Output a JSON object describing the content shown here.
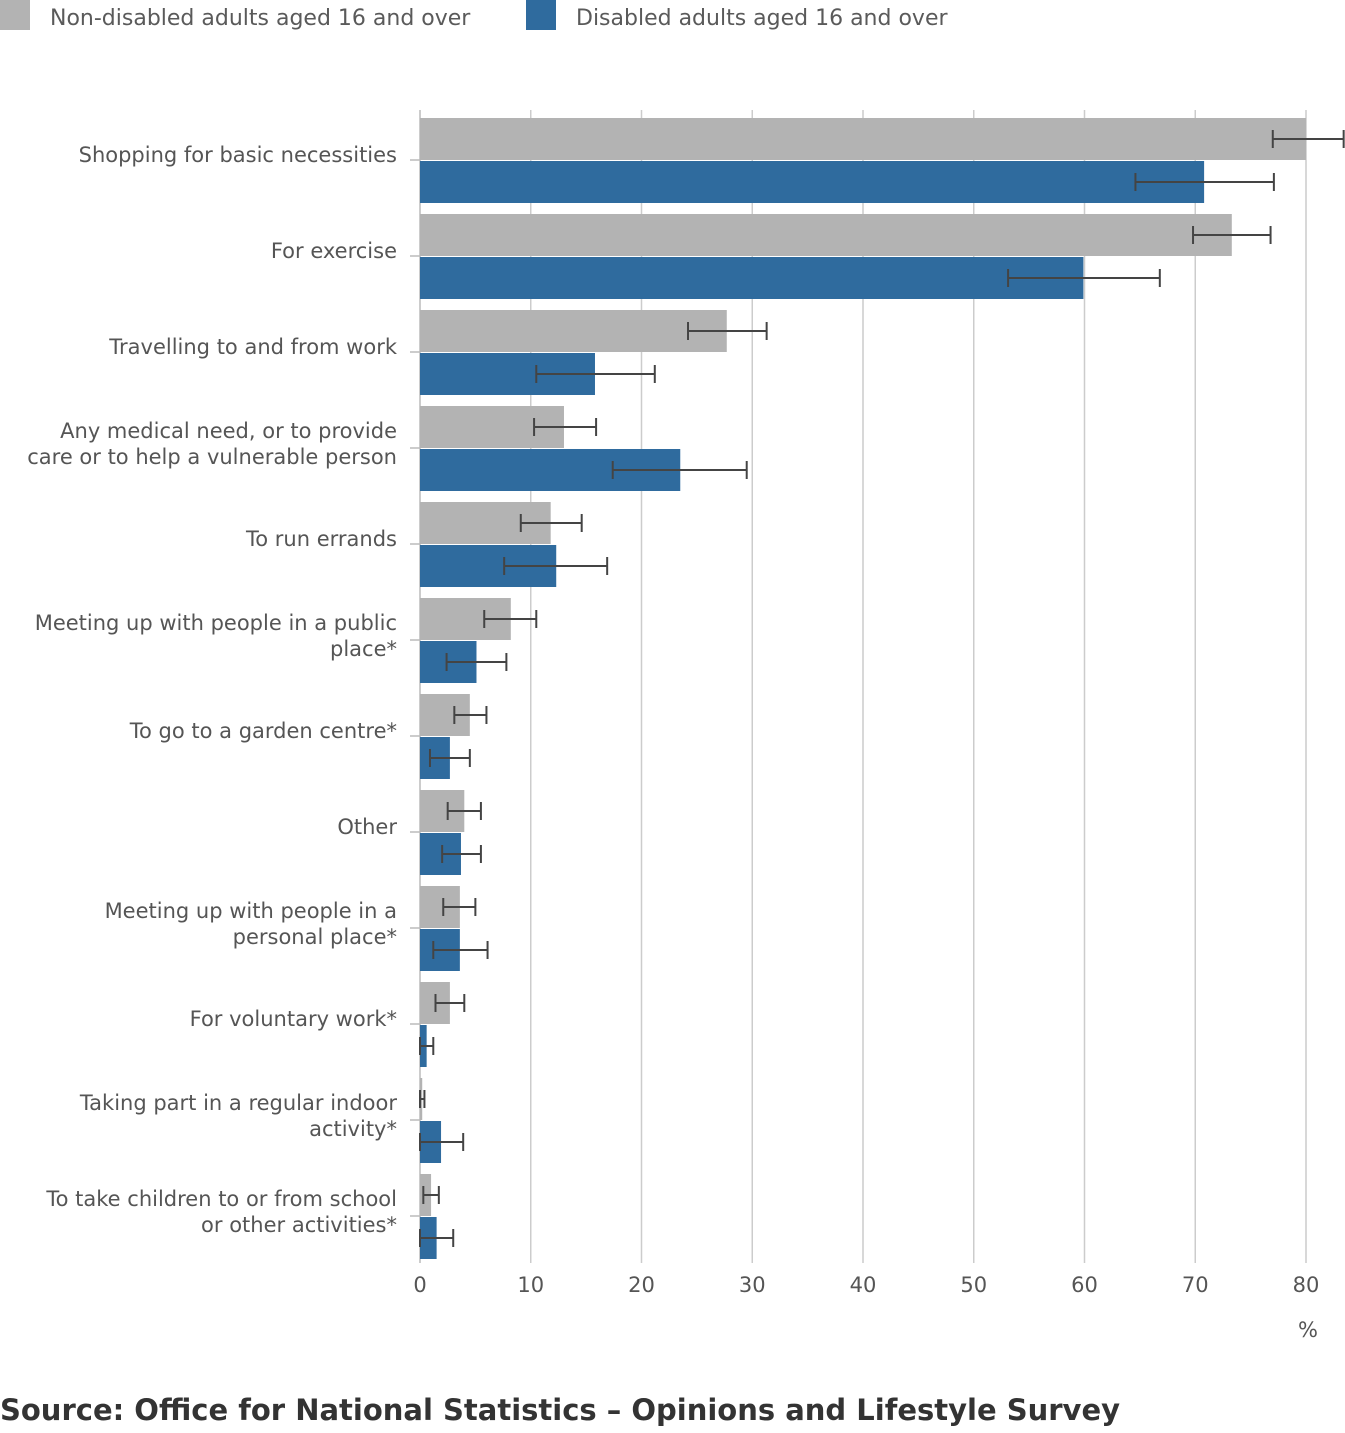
{
  "chart_data": {
    "type": "bar",
    "orientation": "horizontal",
    "categories": [
      "Shopping for basic necessities",
      "For exercise",
      "Travelling to and from work",
      "Any medical need, or to provide care or to help a vulnerable person",
      "To run errands",
      "Meeting up with people in a public place*",
      "To go to a garden centre*",
      "Other",
      "Meeting up with people in a personal place*",
      "For voluntary work*",
      "Taking part in a regular indoor activity*",
      "To take children to or from school or other activities*"
    ],
    "category_lines": [
      [
        "Shopping for basic necessities"
      ],
      [
        "For exercise"
      ],
      [
        "Travelling to and from work"
      ],
      [
        "Any medical need, or to provide",
        "care or to help a vulnerable person"
      ],
      [
        "To run errands"
      ],
      [
        "Meeting up with people in a public",
        "place*"
      ],
      [
        "To go to a garden centre*"
      ],
      [
        "Other"
      ],
      [
        "Meeting up with people in a",
        "personal place*"
      ],
      [
        "For voluntary work*"
      ],
      [
        "Taking part in a regular indoor",
        "activity*"
      ],
      [
        "To take children to or from school",
        "or other activities*"
      ]
    ],
    "series": [
      {
        "name": "Non-disabled adults aged 16 and over",
        "color": "#b3b3b3",
        "values": [
          80.0,
          73.3,
          27.7,
          13.0,
          11.8,
          8.2,
          4.5,
          4.0,
          3.6,
          2.7,
          0.2,
          1.0
        ],
        "ci_low": [
          77.0,
          69.8,
          24.2,
          10.3,
          9.1,
          5.8,
          3.1,
          2.5,
          2.1,
          1.4,
          0.0,
          0.3
        ],
        "ci_high": [
          83.4,
          76.8,
          31.3,
          15.9,
          14.6,
          10.5,
          6.0,
          5.5,
          5.0,
          4.0,
          0.4,
          1.7
        ]
      },
      {
        "name": "Disabled adults aged 16 and over",
        "color": "#2f6b9e",
        "values": [
          70.8,
          59.9,
          15.8,
          23.5,
          12.3,
          5.1,
          2.7,
          3.7,
          3.6,
          0.6,
          1.9,
          1.5
        ],
        "ci_low": [
          64.6,
          53.1,
          10.5,
          17.4,
          7.6,
          2.4,
          0.9,
          2.0,
          1.2,
          0.0,
          0.0,
          0.0
        ],
        "ci_high": [
          77.1,
          66.8,
          21.2,
          29.5,
          16.9,
          7.8,
          4.5,
          5.5,
          6.1,
          1.2,
          3.9,
          3.0
        ]
      }
    ],
    "xlim": [
      0,
      80
    ],
    "xticks": [
      0,
      10,
      20,
      30,
      40,
      50,
      60,
      70,
      80
    ],
    "xlabel": "%",
    "ylabel": "",
    "grid": "vertical",
    "legend_position": "top-left",
    "error_bars": true
  },
  "source_text": "Source: Office for National Statistics – Opinions and Lifestyle Survey"
}
